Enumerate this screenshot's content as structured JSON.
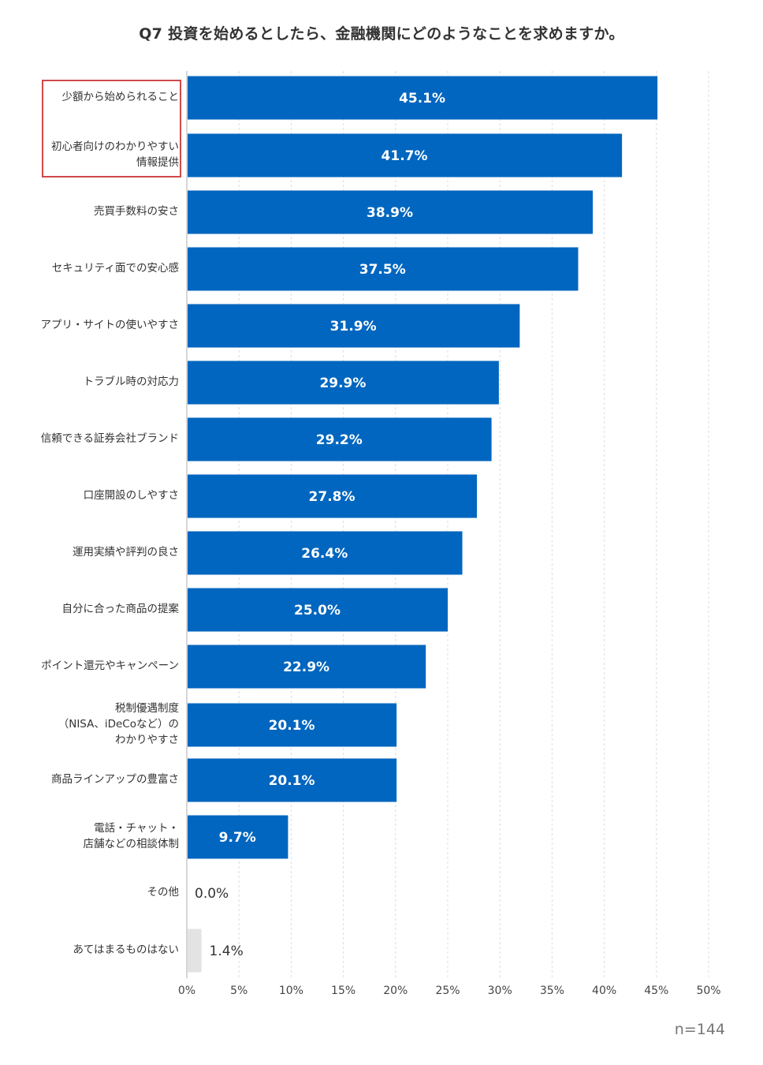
{
  "chart_data": {
    "type": "bar",
    "orientation": "horizontal",
    "title": "Q7 投資を始めるとしたら、金融機関にどのようなことを求めますか。",
    "categories": [
      [
        "少額から始められること"
      ],
      [
        "初心者向けのわかりやすい",
        "情報提供"
      ],
      [
        "売買手数料の安さ"
      ],
      [
        "セキュリティ面での安心感"
      ],
      [
        "アプリ・サイトの使いやすさ"
      ],
      [
        "トラブル時の対応力"
      ],
      [
        "信頼できる証券会社ブランド"
      ],
      [
        "口座開設のしやすさ"
      ],
      [
        "運用実績や評判の良さ"
      ],
      [
        "自分に合った商品の提案"
      ],
      [
        "ポイント還元やキャンペーン"
      ],
      [
        "税制優遇制度",
        "（NISA、iDeCoなど）の",
        "わかりやすさ"
      ],
      [
        "商品ラインアップの豊富さ"
      ],
      [
        "電話・チャット・",
        "店舗などの相談体制"
      ],
      [
        "その他"
      ],
      [
        "あてはまるものはない"
      ]
    ],
    "values": [
      45.1,
      41.7,
      38.9,
      37.5,
      31.9,
      29.9,
      29.2,
      27.8,
      26.4,
      25.0,
      22.9,
      20.1,
      20.1,
      9.7,
      0.0,
      1.4
    ],
    "value_labels": [
      "45.1%",
      "41.7%",
      "38.9%",
      "37.5%",
      "31.9%",
      "29.9%",
      "29.2%",
      "27.8%",
      "26.4%",
      "25.0%",
      "22.9%",
      "20.1%",
      "20.1%",
      "9.7%",
      "0.0%",
      "1.4%"
    ],
    "xlim": [
      0,
      50
    ],
    "xticks": [
      "0%",
      "5%",
      "10%",
      "15%",
      "20%",
      "25%",
      "30%",
      "35%",
      "40%",
      "45%",
      "50%"
    ],
    "grid": "vertical dashed",
    "highlighted_categories": [
      0,
      1
    ],
    "sample_size": "n=144"
  },
  "colors": {
    "bar": "#0066bf",
    "bar_muted": "#e3e3e3",
    "highlight_border": "#d04848",
    "grid": "#dcdcdc"
  }
}
